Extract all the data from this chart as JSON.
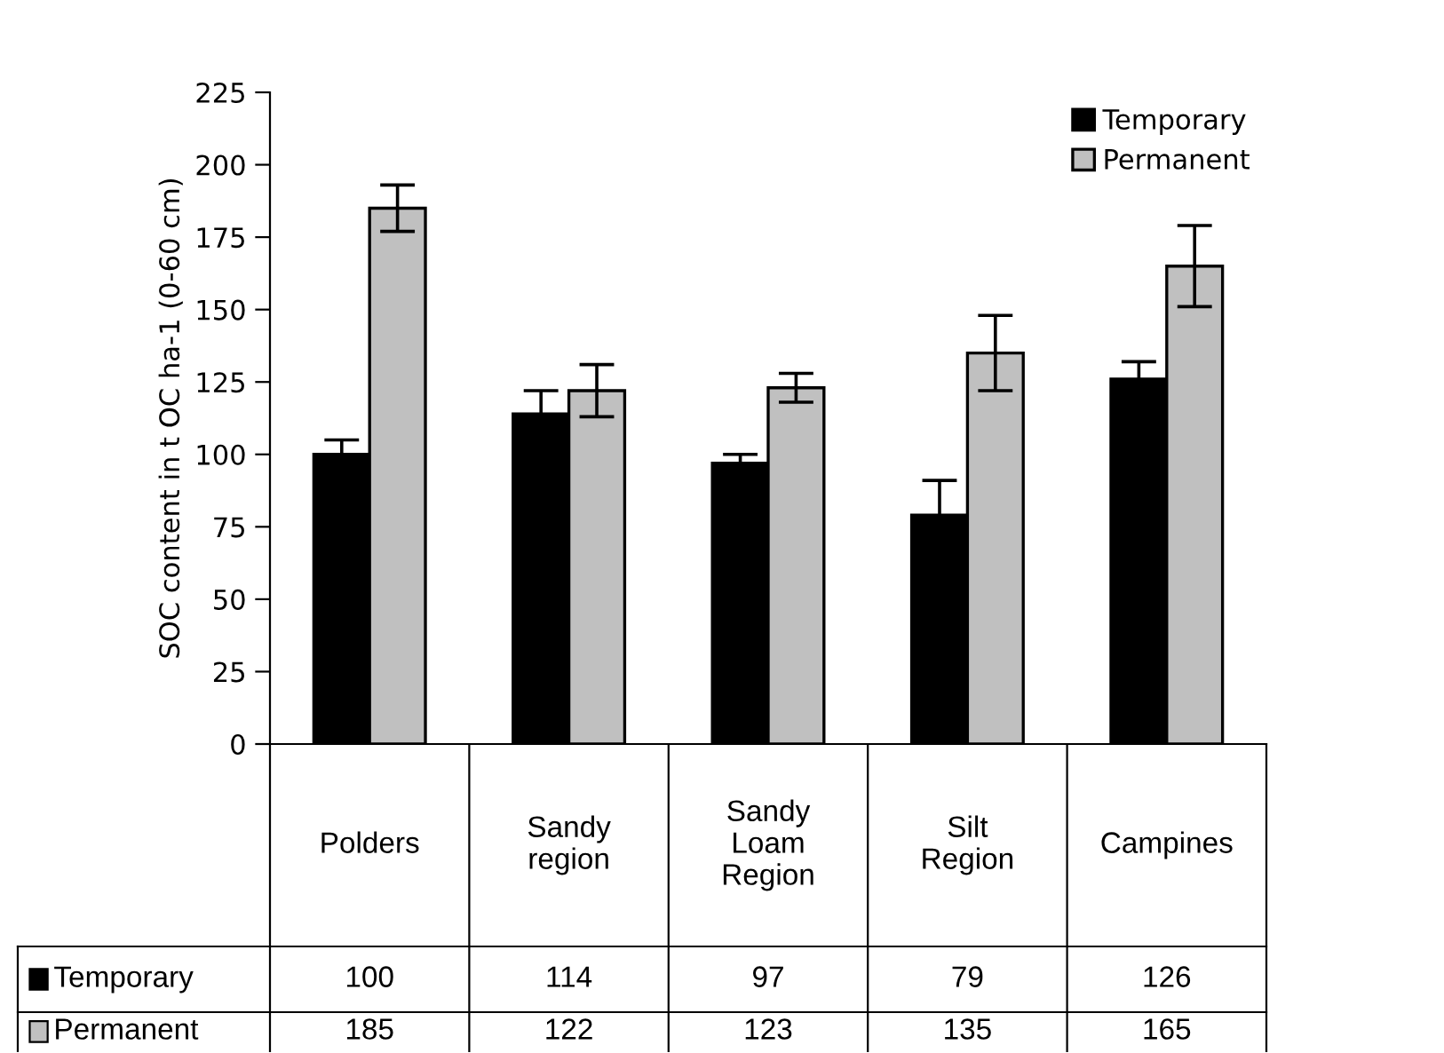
{
  "chart_data": {
    "type": "bar",
    "ylabel": "SOC content in t OC ha-1 (0-60 cm)",
    "categories": [
      "Polders",
      "Sandy\nregion",
      "Sandy\nLoam\nRegion",
      "Silt\nRegion",
      "Campines"
    ],
    "series": [
      {
        "name": "Temporary",
        "color": "#000000",
        "values": [
          100,
          114,
          97,
          79,
          126
        ],
        "errors": [
          5,
          8,
          3,
          12,
          6
        ]
      },
      {
        "name": "Permanent",
        "color": "#c0c0c0",
        "values": [
          185,
          122,
          123,
          135,
          165
        ],
        "errors": [
          8,
          9,
          5,
          13,
          14
        ]
      }
    ],
    "ylim": [
      0,
      225
    ],
    "yticks": [
      0,
      25,
      50,
      75,
      100,
      125,
      150,
      175,
      200,
      225
    ],
    "grid": false,
    "legend": "top right",
    "data_labels": true
  }
}
